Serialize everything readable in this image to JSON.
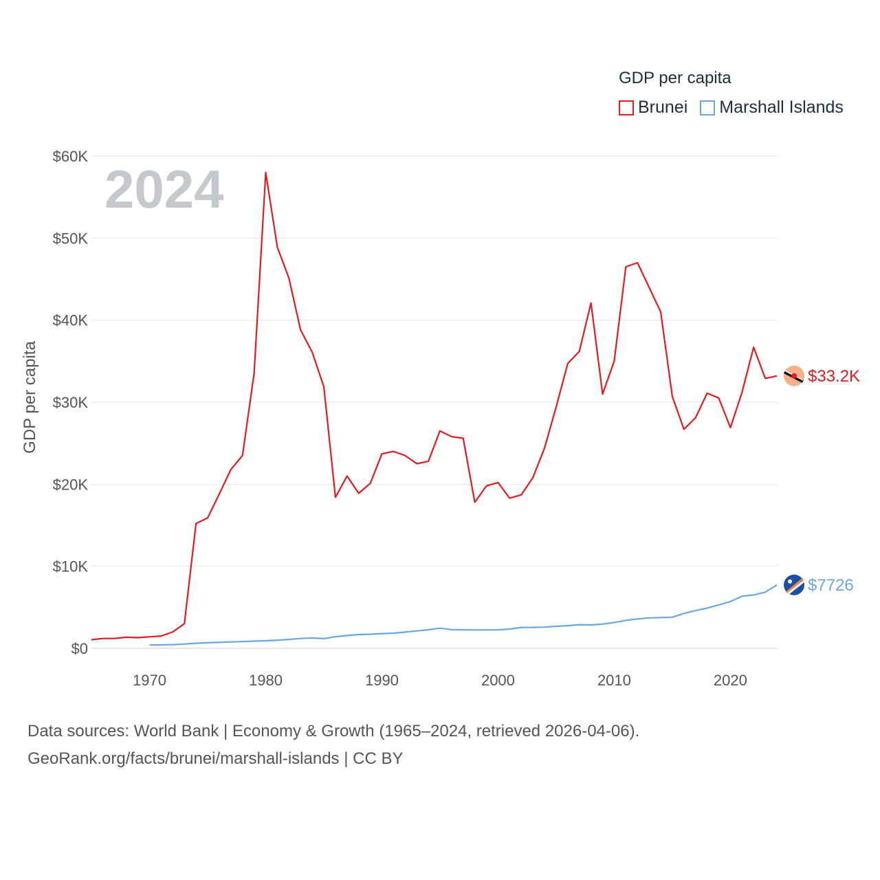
{
  "legend": {
    "title": "GDP per capita",
    "items": [
      "Brunei",
      "Marshall Islands"
    ]
  },
  "colors": {
    "brunei": "#e8181c",
    "marshall": "#6aa7e2",
    "grid": "#e6e6e6"
  },
  "source": {
    "line1": "Data sources: World Bank | Economy & Growth (1965–2024, retrieved 2026-04-06).",
    "line2": "GeoRank.org/facts/brunei/marshall-islands | CC BY"
  },
  "chart_data": {
    "type": "line",
    "title": "",
    "year_label": "2024",
    "xlabel": "",
    "ylabel": "GDP per capita",
    "xlim": [
      1965,
      2024
    ],
    "ylim": [
      0,
      60000
    ],
    "x_ticks": [
      1970,
      1980,
      1990,
      2000,
      2010,
      2020
    ],
    "y_ticks": [
      0,
      10000,
      20000,
      30000,
      40000,
      50000,
      60000
    ],
    "y_tick_labels": [
      "$0",
      "$10K",
      "$20K",
      "$30K",
      "$40K",
      "$50K",
      "$60K"
    ],
    "legend": "top-right",
    "series": [
      {
        "name": "Brunei",
        "end_label": "$33.2K",
        "x": [
          1965,
          1966,
          1967,
          1968,
          1969,
          1970,
          1971,
          1972,
          1973,
          1974,
          1975,
          1976,
          1977,
          1978,
          1979,
          1980,
          1981,
          1982,
          1983,
          1984,
          1985,
          1986,
          1987,
          1988,
          1989,
          1990,
          1991,
          1992,
          1993,
          1994,
          1995,
          1996,
          1997,
          1998,
          1999,
          2000,
          2001,
          2002,
          2003,
          2004,
          2005,
          2006,
          2007,
          2008,
          2009,
          2010,
          2011,
          2012,
          2013,
          2014,
          2015,
          2016,
          2017,
          2018,
          2019,
          2020,
          2021,
          2022,
          2023,
          2024
        ],
        "values": [
          1050,
          1200,
          1200,
          1350,
          1300,
          1400,
          1500,
          2000,
          3000,
          15200,
          15900,
          18800,
          21800,
          23500,
          33500,
          58000,
          48900,
          45100,
          38800,
          36100,
          31900,
          18400,
          21000,
          18900,
          20100,
          23700,
          24000,
          23500,
          22500,
          22800,
          26500,
          25800,
          25600,
          17800,
          19800,
          20200,
          18300,
          18700,
          20800,
          24400,
          29400,
          34700,
          36200,
          42100,
          31000,
          35000,
          46500,
          47000,
          44000,
          41000,
          30700,
          26700,
          28100,
          31100,
          30500,
          26900,
          31200,
          36700,
          32900,
          33200
        ]
      },
      {
        "name": "Marshall Islands",
        "end_label": "$7726",
        "x": [
          1970,
          1971,
          1972,
          1973,
          1974,
          1975,
          1976,
          1977,
          1978,
          1979,
          1980,
          1981,
          1982,
          1983,
          1984,
          1985,
          1986,
          1987,
          1988,
          1989,
          1990,
          1991,
          1992,
          1993,
          1994,
          1995,
          1996,
          1997,
          1998,
          1999,
          2000,
          2001,
          2002,
          2003,
          2004,
          2005,
          2006,
          2007,
          2008,
          2009,
          2010,
          2011,
          2012,
          2013,
          2014,
          2015,
          2016,
          2017,
          2018,
          2019,
          2020,
          2021,
          2022,
          2023,
          2024
        ],
        "values": [
          400,
          420,
          450,
          520,
          620,
          680,
          720,
          780,
          820,
          880,
          920,
          1000,
          1080,
          1200,
          1260,
          1180,
          1420,
          1560,
          1680,
          1720,
          1790,
          1840,
          1980,
          2120,
          2260,
          2450,
          2280,
          2250,
          2240,
          2240,
          2250,
          2350,
          2550,
          2550,
          2580,
          2680,
          2760,
          2880,
          2850,
          2950,
          3150,
          3400,
          3580,
          3700,
          3750,
          3800,
          4250,
          4600,
          4900,
          5300,
          5700,
          6350,
          6500,
          6850,
          7726
        ]
      }
    ]
  }
}
